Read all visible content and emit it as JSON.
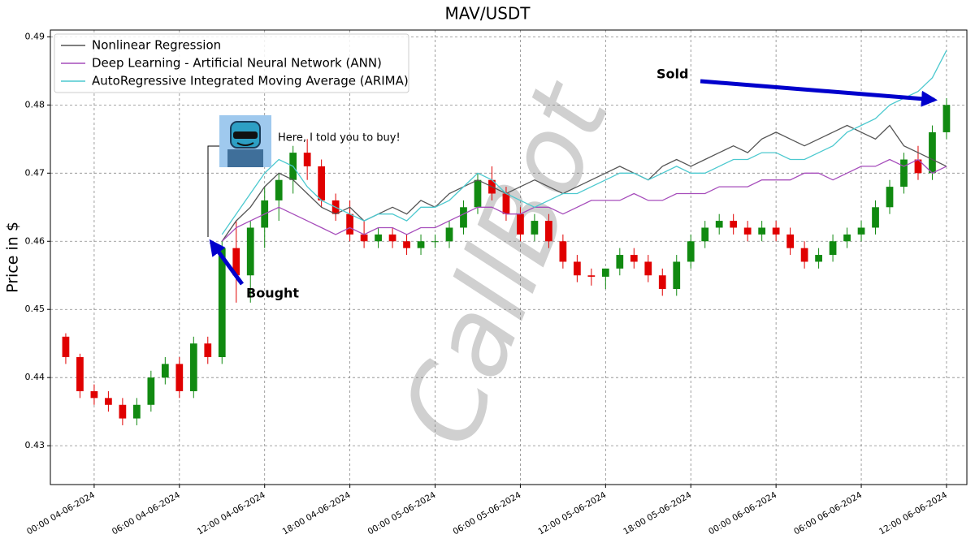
{
  "chart_data": {
    "type": "candlestick",
    "title": "MAV/USDT",
    "y_label": "Price in $",
    "watermark": "CallBot",
    "annotations": {
      "sold": "Sold",
      "bought": "Bought",
      "note": "Here, I told you to buy!"
    },
    "xlim": [
      "20:55 03-06-2024",
      "13:26 06-06-2024"
    ],
    "xticks": [
      "00:00 04-06-2024",
      "06:00 04-06-2024",
      "12:00 04-06-2024",
      "18:00 04-06-2024",
      "00:00 05-06-2024",
      "06:00 05-06-2024",
      "12:00 05-06-2024",
      "18:00 05-06-2024",
      "00:00 06-06-2024",
      "06:00 06-06-2024",
      "12:00 06-06-2024"
    ],
    "ylim": [
      0.4243,
      0.491
    ],
    "yticks": [
      0.43,
      0.44,
      0.45,
      0.46,
      0.47,
      0.48,
      0.49
    ],
    "grid": true,
    "legend": "upper left",
    "up_color": "#118a11",
    "down_color": "#e00000",
    "x": [
      "22:00 03-06-2024",
      "23:00 03-06-2024",
      "00:00 04-06-2024",
      "01:00 04-06-2024",
      "02:00 04-06-2024",
      "03:00 04-06-2024",
      "04:00 04-06-2024",
      "05:00 04-06-2024",
      "06:00 04-06-2024",
      "07:00 04-06-2024",
      "08:00 04-06-2024",
      "09:00 04-06-2024",
      "10:00 04-06-2024",
      "11:00 04-06-2024",
      "12:00 04-06-2024",
      "13:00 04-06-2024",
      "14:00 04-06-2024",
      "15:00 04-06-2024",
      "16:00 04-06-2024",
      "17:00 04-06-2024",
      "18:00 04-06-2024",
      "19:00 04-06-2024",
      "20:00 04-06-2024",
      "21:00 04-06-2024",
      "22:00 04-06-2024",
      "23:00 04-06-2024",
      "00:00 05-06-2024",
      "01:00 05-06-2024",
      "02:00 05-06-2024",
      "03:00 05-06-2024",
      "04:00 05-06-2024",
      "05:00 05-06-2024",
      "06:00 05-06-2024",
      "07:00 05-06-2024",
      "08:00 05-06-2024",
      "09:00 05-06-2024",
      "10:00 05-06-2024",
      "11:00 05-06-2024",
      "12:00 05-06-2024",
      "13:00 05-06-2024",
      "14:00 05-06-2024",
      "15:00 05-06-2024",
      "16:00 05-06-2024",
      "17:00 05-06-2024",
      "18:00 05-06-2024",
      "19:00 05-06-2024",
      "20:00 05-06-2024",
      "21:00 05-06-2024",
      "22:00 05-06-2024",
      "23:00 05-06-2024",
      "00:00 06-06-2024",
      "01:00 06-06-2024",
      "02:00 06-06-2024",
      "03:00 06-06-2024",
      "04:00 06-06-2024",
      "05:00 06-06-2024",
      "06:00 06-06-2024",
      "07:00 06-06-2024",
      "08:00 06-06-2024",
      "09:00 06-06-2024",
      "10:00 06-06-2024",
      "11:00 06-06-2024",
      "12:00 06-06-2024"
    ],
    "open": [
      0.446,
      0.443,
      0.438,
      0.437,
      0.436,
      0.434,
      0.436,
      0.44,
      0.442,
      0.438,
      0.445,
      0.443,
      0.459,
      0.455,
      0.462,
      0.466,
      0.469,
      0.473,
      0.471,
      0.466,
      0.464,
      0.461,
      0.46,
      0.461,
      0.46,
      0.459,
      0.46,
      0.46,
      0.462,
      0.465,
      0.469,
      0.467,
      0.464,
      0.461,
      0.463,
      0.46,
      0.457,
      0.455,
      0.4548,
      0.456,
      0.458,
      0.457,
      0.455,
      0.453,
      0.457,
      0.46,
      0.462,
      0.463,
      0.462,
      0.461,
      0.462,
      0.461,
      0.459,
      0.457,
      0.458,
      0.46,
      0.461,
      0.462,
      0.465,
      0.468,
      0.472,
      0.47,
      0.476
    ],
    "high": [
      0.4465,
      0.4435,
      0.439,
      0.438,
      0.437,
      0.437,
      0.441,
      0.443,
      0.443,
      0.446,
      0.446,
      0.46,
      0.463,
      0.463,
      0.468,
      0.47,
      0.474,
      0.475,
      0.472,
      0.467,
      0.466,
      0.463,
      0.462,
      0.462,
      0.461,
      0.461,
      0.461,
      0.463,
      0.466,
      0.47,
      0.471,
      0.468,
      0.465,
      0.464,
      0.464,
      0.461,
      0.458,
      0.456,
      0.456,
      0.459,
      0.459,
      0.458,
      0.456,
      0.458,
      0.461,
      0.463,
      0.464,
      0.464,
      0.463,
      0.463,
      0.463,
      0.462,
      0.46,
      0.459,
      0.461,
      0.462,
      0.463,
      0.466,
      0.469,
      0.473,
      0.474,
      0.477,
      0.481
    ],
    "low": [
      0.442,
      0.437,
      0.436,
      0.435,
      0.433,
      0.433,
      0.435,
      0.439,
      0.437,
      0.437,
      0.442,
      0.442,
      0.451,
      0.451,
      0.459,
      0.463,
      0.467,
      0.469,
      0.465,
      0.463,
      0.46,
      0.459,
      0.459,
      0.459,
      0.458,
      0.458,
      0.459,
      0.459,
      0.461,
      0.464,
      0.466,
      0.463,
      0.46,
      0.46,
      0.459,
      0.456,
      0.454,
      0.4535,
      0.453,
      0.455,
      0.456,
      0.454,
      0.452,
      0.452,
      0.456,
      0.459,
      0.461,
      0.461,
      0.46,
      0.46,
      0.46,
      0.458,
      0.456,
      0.456,
      0.457,
      0.459,
      0.46,
      0.461,
      0.464,
      0.467,
      0.469,
      0.469,
      0.475
    ],
    "close": [
      0.443,
      0.438,
      0.437,
      0.436,
      0.434,
      0.436,
      0.44,
      0.442,
      0.438,
      0.445,
      0.443,
      0.459,
      0.455,
      0.462,
      0.466,
      0.469,
      0.473,
      0.471,
      0.466,
      0.464,
      0.461,
      0.46,
      0.461,
      0.46,
      0.459,
      0.46,
      0.46,
      0.462,
      0.465,
      0.469,
      0.467,
      0.464,
      0.461,
      0.463,
      0.46,
      0.457,
      0.455,
      0.4548,
      0.456,
      0.458,
      0.457,
      0.455,
      0.453,
      0.457,
      0.46,
      0.462,
      0.463,
      0.462,
      0.461,
      0.462,
      0.461,
      0.459,
      0.457,
      0.458,
      0.46,
      0.461,
      0.462,
      0.465,
      0.468,
      0.472,
      0.47,
      0.476,
      0.48
    ],
    "series": [
      {
        "name": "Nonlinear Regression",
        "color": "#555555",
        "values": [
          null,
          null,
          null,
          null,
          null,
          null,
          null,
          null,
          null,
          null,
          null,
          0.46,
          0.463,
          0.465,
          0.468,
          0.47,
          0.469,
          0.467,
          0.465,
          0.464,
          0.465,
          0.463,
          0.464,
          0.465,
          0.464,
          0.466,
          0.465,
          0.467,
          0.468,
          0.469,
          0.468,
          0.467,
          0.468,
          0.469,
          0.468,
          0.467,
          0.468,
          0.469,
          0.47,
          0.471,
          0.47,
          0.469,
          0.471,
          0.472,
          0.471,
          0.472,
          0.473,
          0.474,
          0.473,
          0.475,
          0.476,
          0.475,
          0.474,
          0.475,
          0.476,
          0.477,
          0.476,
          0.475,
          0.477,
          0.474,
          0.473,
          0.472,
          0.471
        ]
      },
      {
        "name": "Deep Learning - Artificial Neural Network (ANN)",
        "color": "#a64dbb",
        "values": [
          null,
          null,
          null,
          null,
          null,
          null,
          null,
          null,
          null,
          null,
          null,
          0.46,
          0.462,
          0.463,
          0.464,
          0.465,
          0.464,
          0.463,
          0.462,
          0.461,
          0.462,
          0.461,
          0.462,
          0.462,
          0.461,
          0.462,
          0.462,
          0.463,
          0.464,
          0.465,
          0.465,
          0.464,
          0.464,
          0.465,
          0.465,
          0.464,
          0.465,
          0.466,
          0.466,
          0.466,
          0.467,
          0.466,
          0.466,
          0.467,
          0.467,
          0.467,
          0.468,
          0.468,
          0.468,
          0.469,
          0.469,
          0.469,
          0.47,
          0.47,
          0.469,
          0.47,
          0.471,
          0.471,
          0.472,
          0.471,
          0.472,
          0.47,
          0.471
        ]
      },
      {
        "name": "AutoRegressive Integrated Moving Average (ARIMA)",
        "color": "#4cc9cf",
        "values": [
          null,
          null,
          null,
          null,
          null,
          null,
          null,
          null,
          null,
          null,
          null,
          0.461,
          0.464,
          0.467,
          0.47,
          0.472,
          0.471,
          0.468,
          0.466,
          0.465,
          0.464,
          0.463,
          0.464,
          0.464,
          0.463,
          0.465,
          0.465,
          0.466,
          0.468,
          0.47,
          0.469,
          0.467,
          0.466,
          0.465,
          0.466,
          0.467,
          0.467,
          0.468,
          0.469,
          0.47,
          0.47,
          0.469,
          0.47,
          0.471,
          0.47,
          0.47,
          0.471,
          0.472,
          0.472,
          0.473,
          0.473,
          0.472,
          0.472,
          0.473,
          0.474,
          0.476,
          0.477,
          0.478,
          0.48,
          0.481,
          0.482,
          0.484,
          0.488
        ]
      }
    ]
  }
}
